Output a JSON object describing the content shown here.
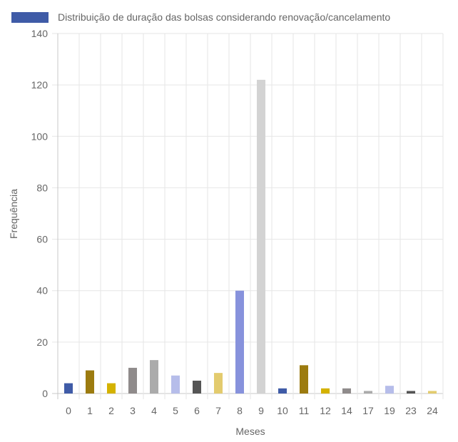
{
  "chart_data": {
    "type": "bar",
    "legend": {
      "label": "Distribuição de duração das bolsas considerando renovação/cancelamento",
      "position": "top",
      "swatch_color": "#3f5ba7"
    },
    "xlabel": "Meses",
    "ylabel": "Frequência",
    "ylim": [
      0,
      140
    ],
    "yticks": [
      0,
      20,
      40,
      60,
      80,
      100,
      120,
      140
    ],
    "grid": true,
    "categories": [
      "0",
      "1",
      "2",
      "3",
      "4",
      "5",
      "6",
      "7",
      "8",
      "9",
      "10",
      "11",
      "12",
      "14",
      "17",
      "19",
      "23",
      "24"
    ],
    "series": [
      {
        "values": [
          4,
          9,
          4,
          10,
          13,
          7,
          5,
          8,
          40,
          122,
          2,
          11,
          2,
          2,
          1,
          3,
          1,
          1
        ],
        "colors": [
          "#3f5ba7",
          "#9c7b0f",
          "#d4b200",
          "#8f8b8b",
          "#ababab",
          "#b6bdea",
          "#555555",
          "#e3cb6e",
          "#8792dc",
          "#d3d3d3",
          "#3f5ba7",
          "#9c7b0f",
          "#d4b200",
          "#8f8b8b",
          "#ababab",
          "#b6bdea",
          "#555555",
          "#e3cb6e"
        ]
      }
    ]
  }
}
